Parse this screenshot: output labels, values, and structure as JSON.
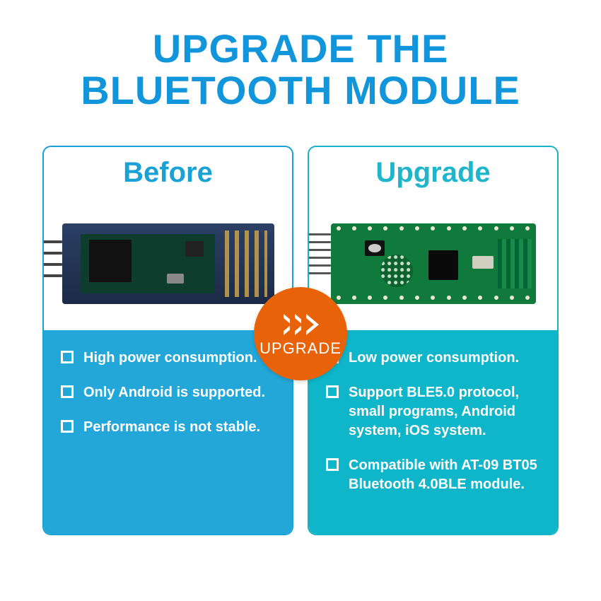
{
  "title": {
    "line1": "UPGRADE THE",
    "line2": "BLUETOOTH MODULE",
    "color": "#1296db"
  },
  "badge": {
    "label": "UPGRADE",
    "bg": "#e8620a",
    "fg": "#ffffff"
  },
  "columns": {
    "before": {
      "header": "Before",
      "border_color": "#1aa1d6",
      "header_color": "#1aa1d6",
      "list_bg": "#23a7d9",
      "bullets": [
        "High power consumption.",
        "Only Android is supported.",
        "Performance is not stable."
      ]
    },
    "upgrade": {
      "header": "Upgrade",
      "border_color": "#17b2c7",
      "header_color": "#1fb6cc",
      "list_bg": "#0fb5c9",
      "bullets": [
        "Low power consumption.",
        "Support BLE5.0 protocol, small programs, Android system, iOS system.",
        "Compatible with AT-09 BT05 Bluetooth 4.0BLE module."
      ]
    }
  }
}
